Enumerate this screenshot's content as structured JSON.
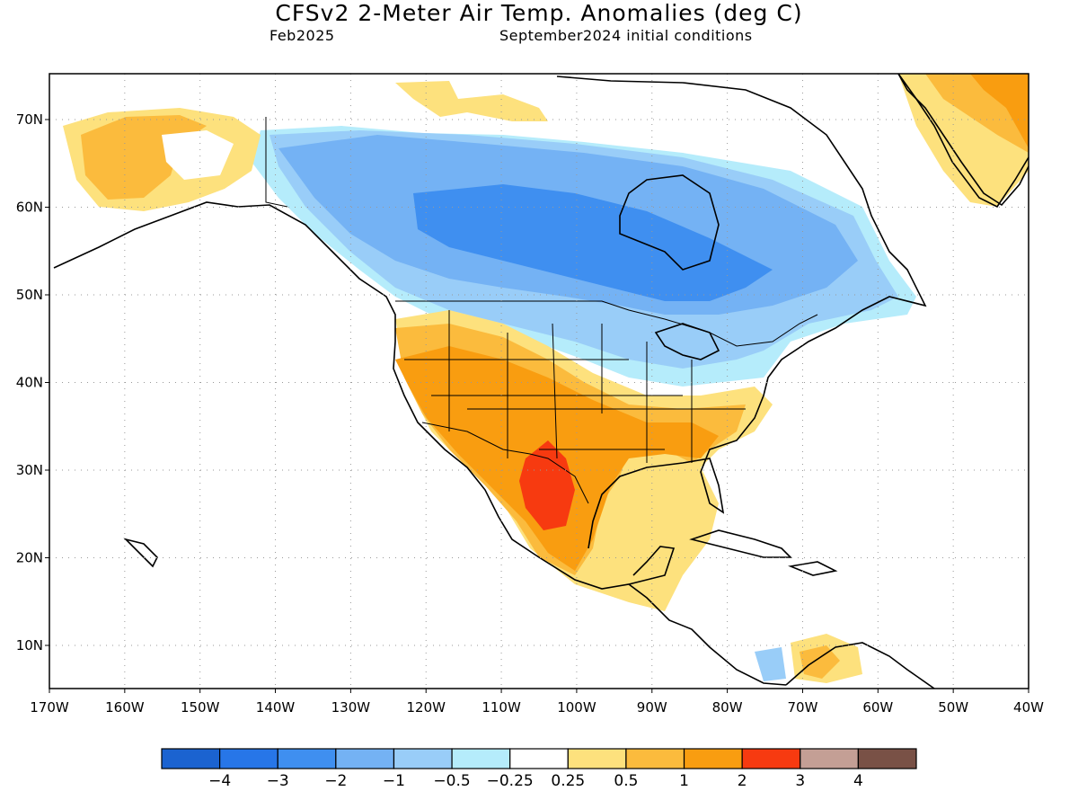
{
  "header": {
    "title": "CFSv2 2-Meter Air Temp. Anomalies (deg C)",
    "period": "Feb2025",
    "init": "September2024 initial conditions"
  },
  "axes": {
    "lat_labels": [
      "10N",
      "20N",
      "30N",
      "40N",
      "50N",
      "60N",
      "70N"
    ],
    "lon_labels": [
      "170W",
      "160W",
      "150W",
      "140W",
      "130W",
      "120W",
      "110W",
      "100W",
      "90W",
      "80W",
      "70W",
      "60W",
      "50W",
      "40W"
    ]
  },
  "legend": {
    "colors": [
      "#1b63d0",
      "#2776e8",
      "#3f8ff0",
      "#74b2f4",
      "#99cdf8",
      "#b5ecfb",
      "#ffffff",
      "#fde17d",
      "#fbbb3d",
      "#f99d10",
      "#f73a10",
      "#c49f95",
      "#795146"
    ],
    "labels": [
      "-4",
      "-3",
      "-2",
      "-1",
      "-0.5",
      "-0.25",
      "0.25",
      "0.5",
      "1",
      "2",
      "3",
      "4"
    ]
  },
  "colors": {
    "land_outline": "#000000",
    "grid_dots": "#999999"
  }
}
